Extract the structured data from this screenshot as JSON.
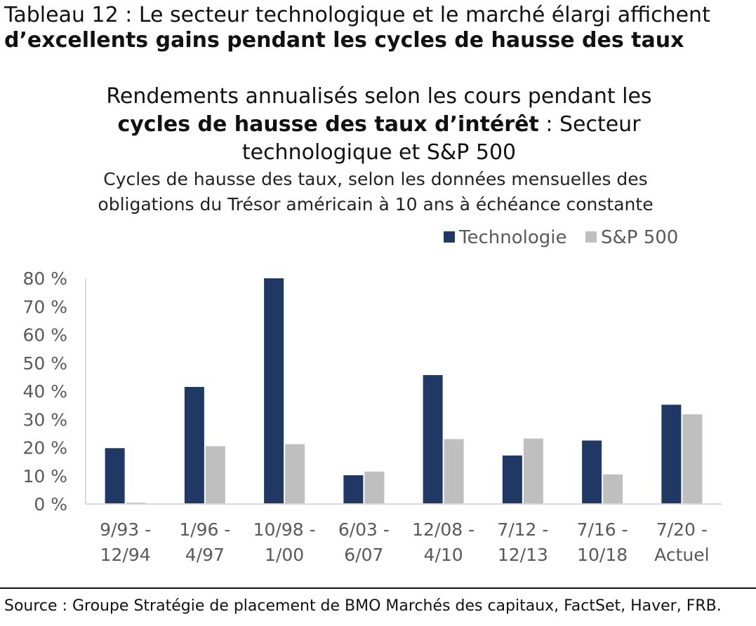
{
  "heading": {
    "line1": "Tableau 12 : Le secteur technologique et le marché élargi affichent",
    "line2": "d’excellents gains pendant les cycles de hausse des taux"
  },
  "chart_data": {
    "type": "bar",
    "title": {
      "part1": "Rendements annualisés selon les cours pendant les",
      "bold": "cycles de hausse des taux d’intérêt",
      "part2": " : Secteur",
      "part3": "technologique et S&P 500"
    },
    "subtitle": "Cycles de hausse des taux, selon les données mensuelles des obligations du Trésor américain à 10 ans à échéance constante",
    "categories": [
      [
        "9/93 -",
        "12/94"
      ],
      [
        "1/96 -",
        "4/97"
      ],
      [
        "10/98 -",
        "1/00"
      ],
      [
        "6/03 -",
        "6/07"
      ],
      [
        "12/08 -",
        "4/10"
      ],
      [
        "7/12 -",
        "12/13"
      ],
      [
        "7/16 -",
        "10/18"
      ],
      [
        "7/20 -",
        "Actuel"
      ]
    ],
    "series": [
      {
        "name": "Technologie",
        "color": "#1f3864",
        "values": [
          19.8,
          41.5,
          80.0,
          10.2,
          45.7,
          17.2,
          22.5,
          35.2
        ]
      },
      {
        "name": "S&P 500",
        "color": "#bfbfbf",
        "values": [
          0.5,
          20.5,
          21.2,
          11.5,
          23.0,
          23.2,
          10.5,
          31.8
        ]
      }
    ],
    "yticks": [
      "0 %",
      "10 %",
      "20 %",
      "30 %",
      "40 %",
      "50 %",
      "60 %",
      "70 %",
      "80 %"
    ],
    "ylim": [
      0,
      80
    ],
    "grid": false,
    "legend_position": "top-right"
  },
  "source": "Source : Groupe Stratégie de placement de BMO Marchés des capitaux, FactSet, Haver, FRB."
}
